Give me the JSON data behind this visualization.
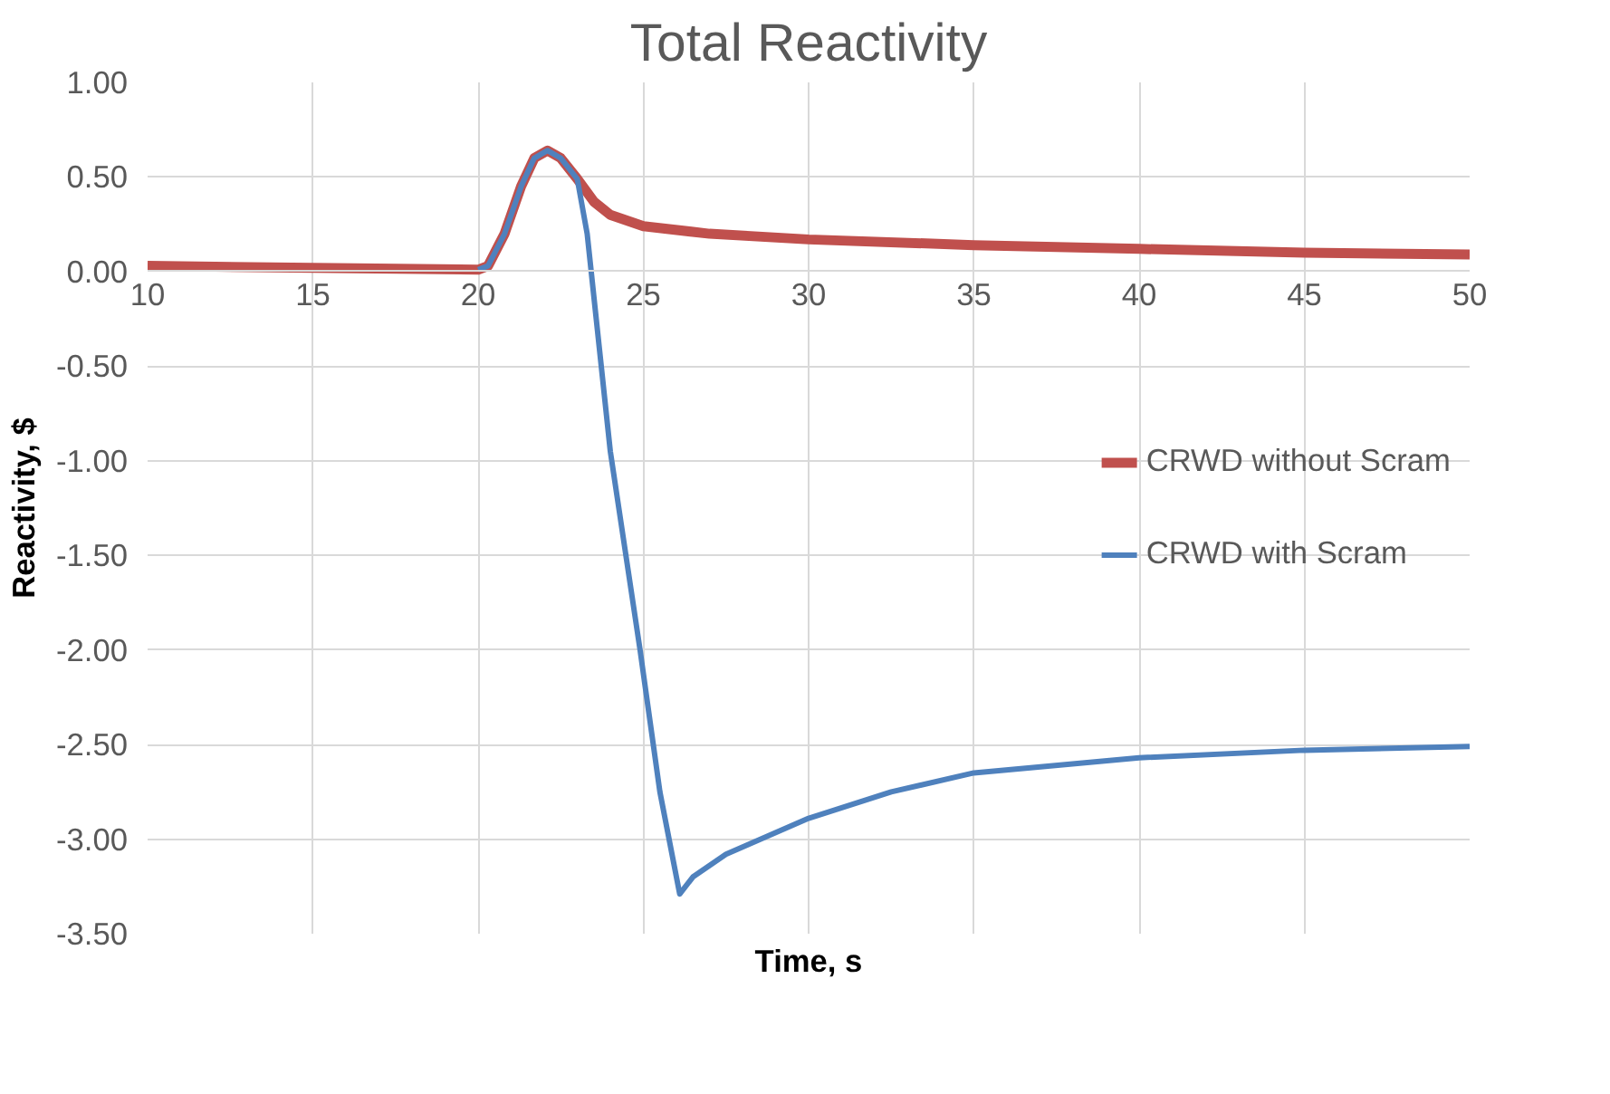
{
  "chart_data": {
    "type": "line",
    "title": "Total Reactivity",
    "xlabel": "Time, s",
    "ylabel": "Reactivity, $",
    "xlim": [
      10,
      50
    ],
    "xticks": [
      10,
      15,
      20,
      25,
      30,
      35,
      40,
      45,
      50
    ],
    "ylim": [
      -3.5,
      1.0
    ],
    "yticks": [
      {
        "value": -3.5,
        "label": "-3.50"
      },
      {
        "value": -3.0,
        "label": "-3.00"
      },
      {
        "value": -2.5,
        "label": "-2.50"
      },
      {
        "value": -2.0,
        "label": "-2.00"
      },
      {
        "value": -1.5,
        "label": "-1.50"
      },
      {
        "value": -1.0,
        "label": "-1.00"
      },
      {
        "value": -0.5,
        "label": "-0.50"
      },
      {
        "value": 0,
        "label": "0.00"
      },
      {
        "value": 0.5,
        "label": "0.50"
      },
      {
        "value": 1.0,
        "label": "1.00"
      }
    ],
    "grid": true,
    "legend": "center right",
    "line_style": "solid",
    "series": [
      {
        "name": "CRWD without Scram",
        "color": "#c0504d",
        "x": [
          10,
          15,
          20,
          20.3,
          20.8,
          21.3,
          21.7,
          22.1,
          22.5,
          23.0,
          23.5,
          24,
          25,
          27,
          30,
          35,
          40,
          45,
          50
        ],
        "values": [
          0.03,
          0.02,
          0.01,
          0.03,
          0.2,
          0.45,
          0.6,
          0.64,
          0.6,
          0.49,
          0.37,
          0.3,
          0.24,
          0.2,
          0.17,
          0.14,
          0.12,
          0.1,
          0.09
        ]
      },
      {
        "name": "CRWD with Scram",
        "color": "#4f81bd",
        "x": [
          20,
          20.3,
          20.8,
          21.3,
          21.7,
          22.1,
          22.5,
          23.0,
          23.3,
          24.0,
          24.9,
          25.5,
          26.1,
          26.5,
          27.5,
          30,
          32.5,
          35,
          40,
          45,
          50
        ],
        "values": [
          0.01,
          0.03,
          0.2,
          0.45,
          0.6,
          0.64,
          0.6,
          0.49,
          0.2,
          -0.95,
          -2.0,
          -2.75,
          -3.29,
          -3.2,
          -3.08,
          -2.89,
          -2.75,
          -2.65,
          -2.57,
          -2.53,
          -2.51
        ]
      }
    ]
  }
}
